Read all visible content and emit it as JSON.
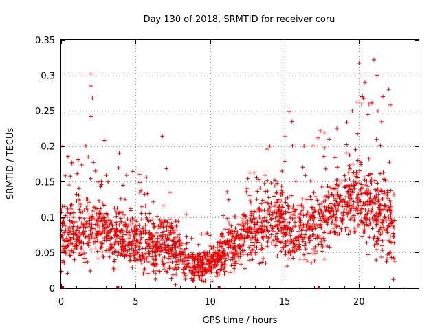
{
  "chart_data": {
    "type": "scatter",
    "title": "Day 130 of 2018, SRMTID for receiver coru",
    "xlabel": "GPS time / hours",
    "ylabel": "SRMTID / TECUs",
    "xlim": [
      0,
      24
    ],
    "ylim": [
      0,
      0.35
    ],
    "x_ticks": [
      {
        "value": 0,
        "label": "0"
      },
      {
        "value": 5,
        "label": "5"
      },
      {
        "value": 10,
        "label": "10"
      },
      {
        "value": 15,
        "label": "15"
      },
      {
        "value": 20,
        "label": "20"
      }
    ],
    "y_ticks": [
      {
        "value": 0,
        "label": "0"
      },
      {
        "value": 0.05,
        "label": "0.05"
      },
      {
        "value": 0.1,
        "label": "0.1"
      },
      {
        "value": 0.15,
        "label": "0.15"
      },
      {
        "value": 0.2,
        "label": "0.2"
      },
      {
        "value": 0.25,
        "label": "0.25"
      },
      {
        "value": 0.3,
        "label": "0.3"
      },
      {
        "value": 0.35,
        "label": "0.35"
      }
    ],
    "grid": true,
    "marker": "+",
    "color": "#ee0000",
    "data_gaps_hours": [
      0.1,
      3.8,
      10.6,
      17.3
    ],
    "envelope": {
      "x": [
        0,
        1,
        2,
        3,
        4,
        5,
        6,
        7,
        8,
        9,
        10,
        11,
        12,
        13,
        14,
        15,
        16,
        17,
        18,
        19,
        20,
        21,
        22,
        22.4
      ],
      "center": [
        0.08,
        0.075,
        0.085,
        0.08,
        0.075,
        0.065,
        0.06,
        0.065,
        0.05,
        0.03,
        0.035,
        0.055,
        0.065,
        0.08,
        0.1,
        0.09,
        0.075,
        0.085,
        0.105,
        0.125,
        0.135,
        0.11,
        0.09,
        0.08
      ],
      "spread": [
        0.045,
        0.045,
        0.05,
        0.05,
        0.045,
        0.04,
        0.04,
        0.045,
        0.035,
        0.02,
        0.025,
        0.035,
        0.04,
        0.045,
        0.05,
        0.055,
        0.05,
        0.05,
        0.05,
        0.05,
        0.055,
        0.065,
        0.065,
        0.06
      ]
    },
    "notable_points": [
      {
        "x": 0.1,
        "y": 0.2
      },
      {
        "x": 2.0,
        "y": 0.302
      },
      {
        "x": 2.0,
        "y": 0.285
      },
      {
        "x": 2.1,
        "y": 0.268
      },
      {
        "x": 2.0,
        "y": 0.242
      },
      {
        "x": 2.9,
        "y": 0.208
      },
      {
        "x": 3.9,
        "y": 0.19
      },
      {
        "x": 6.8,
        "y": 0.214
      },
      {
        "x": 14.0,
        "y": 0.2
      },
      {
        "x": 15.3,
        "y": 0.249
      },
      {
        "x": 15.5,
        "y": 0.235
      },
      {
        "x": 17.4,
        "y": 0.222
      },
      {
        "x": 18.0,
        "y": 0.21
      },
      {
        "x": 20.0,
        "y": 0.317
      },
      {
        "x": 20.4,
        "y": 0.29
      },
      {
        "x": 21.0,
        "y": 0.322
      },
      {
        "x": 21.2,
        "y": 0.3
      },
      {
        "x": 21.6,
        "y": 0.27
      },
      {
        "x": 22.0,
        "y": 0.28
      },
      {
        "x": 22.1,
        "y": 0.258
      },
      {
        "x": 20.2,
        "y": 0.27
      }
    ]
  }
}
